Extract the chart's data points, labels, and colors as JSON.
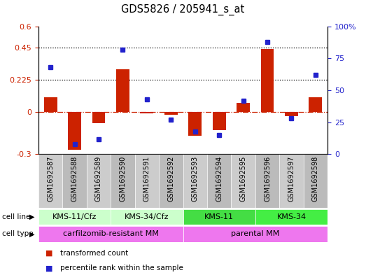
{
  "title": "GDS5826 / 205941_s_at",
  "samples": [
    "GSM1692587",
    "GSM1692588",
    "GSM1692589",
    "GSM1692590",
    "GSM1692591",
    "GSM1692592",
    "GSM1692593",
    "GSM1692594",
    "GSM1692595",
    "GSM1692596",
    "GSM1692597",
    "GSM1692598"
  ],
  "transformed_count": [
    0.1,
    -0.27,
    -0.08,
    0.3,
    -0.01,
    -0.02,
    -0.17,
    -0.13,
    0.06,
    0.44,
    -0.03,
    0.1
  ],
  "percentile_rank": [
    0.68,
    0.08,
    0.12,
    0.82,
    0.43,
    0.27,
    0.18,
    0.15,
    0.42,
    0.88,
    0.28,
    0.62
  ],
  "ylim_left": [
    -0.3,
    0.6
  ],
  "ylim_right": [
    0,
    1.0
  ],
  "yticks_left": [
    -0.3,
    0.0,
    0.225,
    0.45,
    0.6
  ],
  "ytick_labels_left": [
    "-0.3",
    "0",
    "0.225",
    "0.45",
    "0.6"
  ],
  "yticks_right": [
    0.0,
    0.25,
    0.5,
    0.75,
    1.0
  ],
  "ytick_labels_right": [
    "0",
    "25",
    "50",
    "75",
    "100%"
  ],
  "hlines": [
    0.225,
    0.45
  ],
  "bar_color": "#cc2200",
  "dot_color": "#2222cc",
  "zero_line_color": "#cc2200",
  "cell_line_groups": [
    {
      "label": "KMS-11/Cfz",
      "start": 0,
      "end": 3,
      "color": "#ccffcc"
    },
    {
      "label": "KMS-34/Cfz",
      "start": 3,
      "end": 6,
      "color": "#ccffcc"
    },
    {
      "label": "KMS-11",
      "start": 6,
      "end": 9,
      "color": "#44dd44"
    },
    {
      "label": "KMS-34",
      "start": 9,
      "end": 12,
      "color": "#44ee44"
    }
  ],
  "cell_type_groups": [
    {
      "label": "carfilzomib-resistant MM",
      "start": 0,
      "end": 6,
      "color": "#ee77ee"
    },
    {
      "label": "parental MM",
      "start": 6,
      "end": 12,
      "color": "#ee77ee"
    }
  ],
  "legend_items": [
    {
      "label": "transformed count",
      "color": "#cc2200"
    },
    {
      "label": "percentile rank within the sample",
      "color": "#2222cc"
    }
  ],
  "sample_cell_colors": [
    "#cccccc",
    "#bbbbbb",
    "#cccccc",
    "#bbbbbb",
    "#cccccc",
    "#bbbbbb",
    "#cccccc",
    "#bbbbbb",
    "#cccccc",
    "#bbbbbb",
    "#cccccc",
    "#bbbbbb"
  ]
}
